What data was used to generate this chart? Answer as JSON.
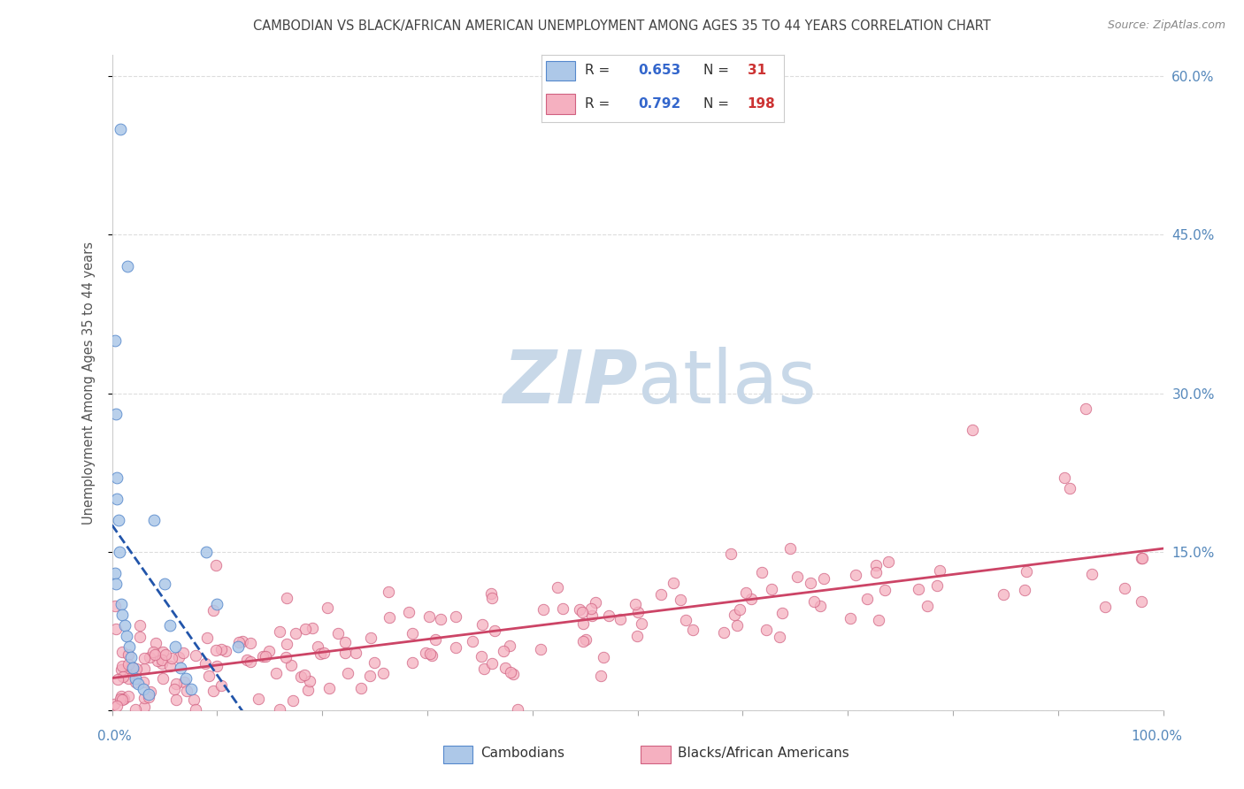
{
  "title": "CAMBODIAN VS BLACK/AFRICAN AMERICAN UNEMPLOYMENT AMONG AGES 35 TO 44 YEARS CORRELATION CHART",
  "source": "Source: ZipAtlas.com",
  "ylabel": "Unemployment Among Ages 35 to 44 years",
  "right_yticklabels": [
    "",
    "15.0%",
    "30.0%",
    "45.0%",
    "60.0%"
  ],
  "right_ytick_vals": [
    0.0,
    0.15,
    0.3,
    0.45,
    0.6
  ],
  "ylim": [
    0,
    0.62
  ],
  "xlim": [
    0,
    1.0
  ],
  "cambodian_R": 0.653,
  "cambodian_N": 31,
  "black_R": 0.792,
  "black_N": 198,
  "cambodian_face_color": "#adc8e8",
  "cambodian_edge_color": "#5588cc",
  "cambodian_line_color": "#2255aa",
  "black_face_color": "#f5b0c0",
  "black_edge_color": "#d06080",
  "black_line_color": "#cc4466",
  "watermark_ZIP_color": "#c8d8e8",
  "watermark_atlas_color": "#c8d8e8",
  "background_color": "#ffffff",
  "grid_color": "#dddddd",
  "title_color": "#444444",
  "axis_label_color": "#5588bb",
  "legend_text_color": "#333333",
  "legend_R_color": "#3366cc",
  "legend_N_color": "#cc3333",
  "legend_box_bg": "#ffffff",
  "legend_box_edge": "#cccccc"
}
